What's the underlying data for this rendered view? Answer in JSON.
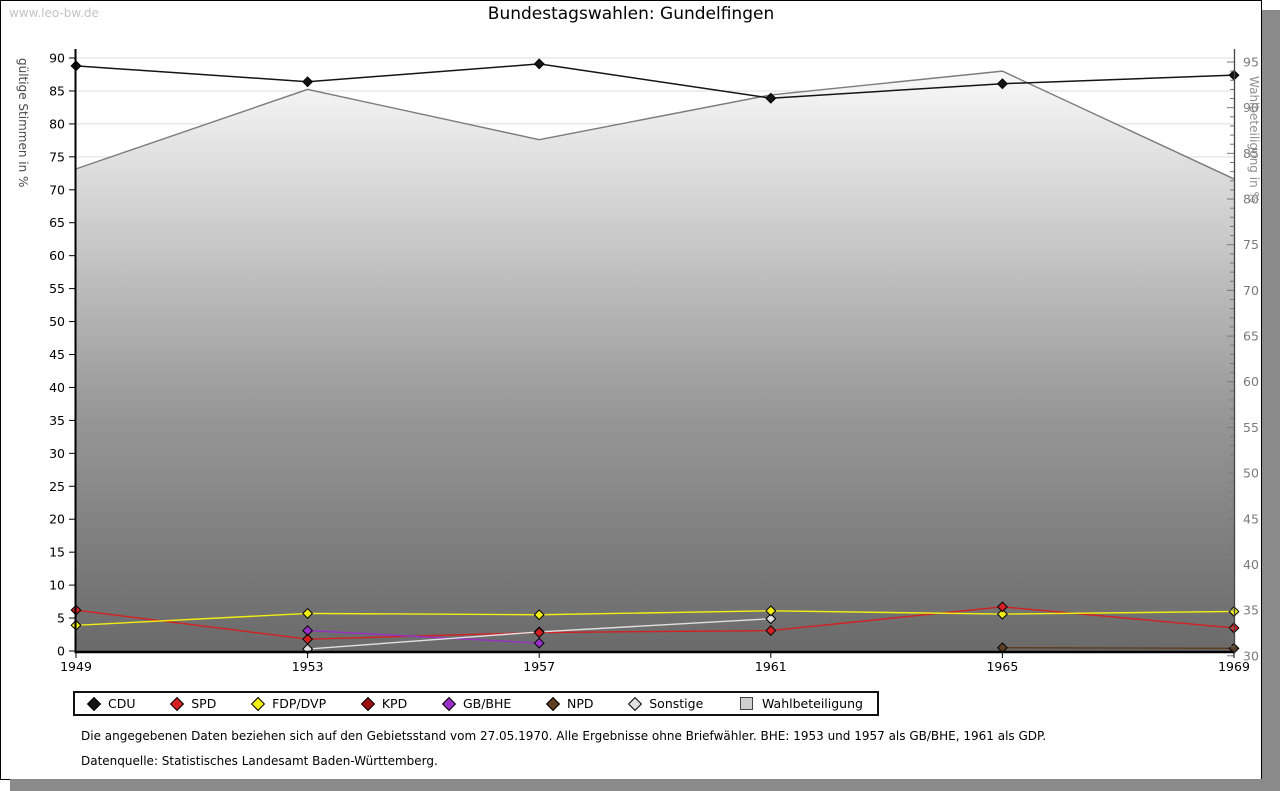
{
  "watermark": "www.leo-bw.de",
  "title": "Bundestagswahlen: Gundelfingen",
  "footnotes": [
    "Die angegebenen Daten beziehen sich auf den Gebietsstand vom 27.05.1970. Alle Ergebnisse ohne Briefwähler. BHE: 1953 und 1957 als GB/BHE, 1961 als GDP.",
    "Datenquelle: Statistisches Landesamt Baden-Württemberg."
  ],
  "chart_data": {
    "type": "line",
    "x": [
      "1949",
      "1953",
      "1957",
      "1961",
      "1965",
      "1969"
    ],
    "left_axis": {
      "label": "gültige Stimmen in %",
      "range": [
        0,
        90
      ],
      "ticks": [
        0,
        5,
        10,
        15,
        20,
        25,
        30,
        35,
        40,
        45,
        50,
        55,
        60,
        65,
        70,
        75,
        80,
        85,
        90
      ],
      "tick_color": "#000000",
      "title_color": "#4a4a4a"
    },
    "right_axis": {
      "label": "Wahlbeteiligung in %",
      "range": [
        30,
        95
      ],
      "ticks": [
        30,
        35,
        40,
        45,
        50,
        55,
        60,
        65,
        70,
        75,
        80,
        85,
        90,
        95
      ],
      "minor_tick_step": 1,
      "tick_color": "#7a7a7a",
      "title_color": "#8f8f8f"
    },
    "grid": {
      "on": true,
      "color": "#dcdcdc"
    },
    "series": [
      {
        "name": "CDU",
        "axis": "left",
        "kind": "line",
        "marker": "diamond",
        "color": "#141414",
        "values": [
          88.8,
          86.4,
          89.1,
          83.9,
          86.1,
          87.4
        ]
      },
      {
        "name": "SPD",
        "axis": "left",
        "kind": "line",
        "marker": "diamond",
        "color": "#d42020",
        "values": [
          6.2,
          1.8,
          2.8,
          3.1,
          6.7,
          3.5
        ]
      },
      {
        "name": "FDP/DVP",
        "axis": "left",
        "kind": "line",
        "marker": "diamond",
        "color": "#f2ee14",
        "values": [
          3.9,
          5.7,
          5.5,
          6.1,
          5.6,
          6.0
        ]
      },
      {
        "name": "KPD",
        "axis": "left",
        "kind": "line",
        "marker": "diamond",
        "color": "#9e1212",
        "values": [
          null,
          null,
          null,
          null,
          null,
          null
        ]
      },
      {
        "name": "GB/BHE",
        "axis": "left",
        "kind": "line",
        "marker": "diamond",
        "color": "#9a2fc8",
        "values": [
          null,
          3.1,
          1.2,
          null,
          null,
          null
        ]
      },
      {
        "name": "NPD",
        "axis": "left",
        "kind": "line",
        "marker": "diamond",
        "color": "#5f3d1e",
        "values": [
          null,
          null,
          null,
          null,
          0.5,
          0.4
        ]
      },
      {
        "name": "Sonstige",
        "axis": "left",
        "kind": "line",
        "marker": "diamond",
        "color": "#e0e0e0",
        "values": [
          null,
          0.3,
          2.9,
          4.9,
          null,
          null
        ]
      },
      {
        "name": "Wahlbeteiligung",
        "axis": "right",
        "kind": "area",
        "marker": "none",
        "color": "#7c7c7c",
        "fill_gradient": [
          "#ffffff",
          "#989898",
          "#6a6a6a"
        ],
        "values": [
          83.3,
          92.0,
          86.5,
          91.4,
          94.0,
          82.2
        ]
      }
    ],
    "legend_position": "bottom"
  },
  "legend": {
    "items": [
      {
        "label": "CDU",
        "swatch": "diamond",
        "color": "#141414"
      },
      {
        "label": "SPD",
        "swatch": "diamond",
        "color": "#d42020"
      },
      {
        "label": "FDP/DVP",
        "swatch": "diamond",
        "color": "#f2ee14"
      },
      {
        "label": "KPD",
        "swatch": "diamond",
        "color": "#9e1212"
      },
      {
        "label": "GB/BHE",
        "swatch": "diamond",
        "color": "#9a2fc8"
      },
      {
        "label": "NPD",
        "swatch": "diamond",
        "color": "#5f3d1e"
      },
      {
        "label": "Sonstige",
        "swatch": "diamond",
        "color": "#e0e0e0"
      },
      {
        "label": "Wahlbeteiligung",
        "swatch": "square",
        "color": "#cfcfcf"
      }
    ]
  }
}
